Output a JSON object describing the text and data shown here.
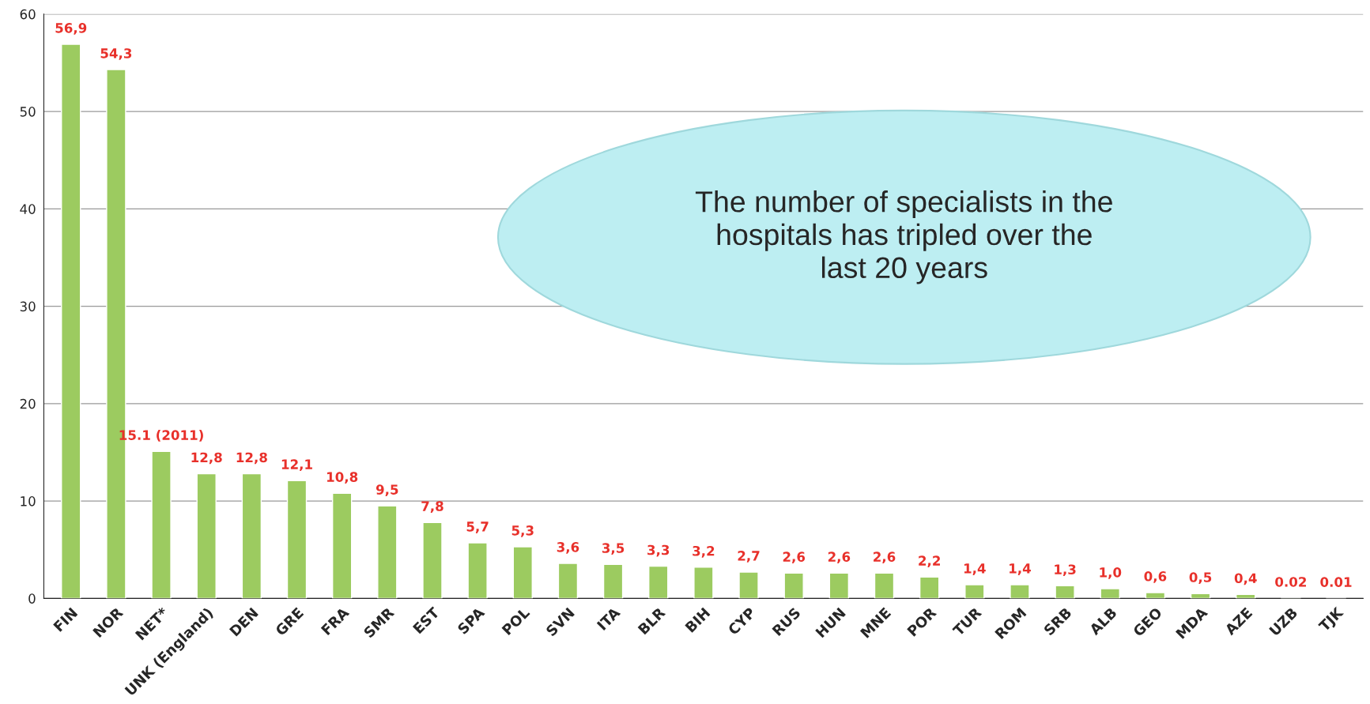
{
  "chart_data": {
    "type": "bar",
    "categories": [
      "FIN",
      "NOR",
      "NET*",
      "UNK (England)",
      "DEN",
      "GRE",
      "FRA",
      "SMR",
      "EST",
      "SPA",
      "POL",
      "SVN",
      "ITA",
      "BLR",
      "BIH",
      "CYP",
      "RUS",
      "HUN",
      "MNE",
      "POR",
      "TUR",
      "ROM",
      "SRB",
      "ALB",
      "GEO",
      "MDA",
      "AZE",
      "UZB",
      "TJK"
    ],
    "values": [
      56.9,
      54.3,
      15.1,
      12.8,
      12.8,
      12.1,
      10.8,
      9.5,
      7.8,
      5.7,
      5.3,
      3.6,
      3.5,
      3.3,
      3.2,
      2.7,
      2.6,
      2.6,
      2.6,
      2.2,
      1.4,
      1.4,
      1.3,
      1.0,
      0.6,
      0.5,
      0.4,
      0.02,
      0.01
    ],
    "value_labels": [
      "56,9",
      "54,3",
      "15.1 (2011)",
      "12,8",
      "12,8",
      "12,1",
      "10,8",
      "9,5",
      "7,8",
      "5,7",
      "5,3",
      "3,6",
      "3,5",
      "3,3",
      "3,2",
      "2,7",
      "2,6",
      "2,6",
      "2,6",
      "2,2",
      "1,4",
      "1,4",
      "1,3",
      "1,0",
      "0,6",
      "0,5",
      "0,4",
      "0.02",
      "0.01"
    ],
    "color": "#9ccb60",
    "ylim": [
      0,
      60
    ],
    "yticks": [
      0,
      10,
      20,
      30,
      40,
      50,
      60
    ],
    "grid": "y",
    "legend": false,
    "annotations": [
      "The number of specialists in the\nhospitals has tripled over the\nlast 20 years"
    ]
  }
}
